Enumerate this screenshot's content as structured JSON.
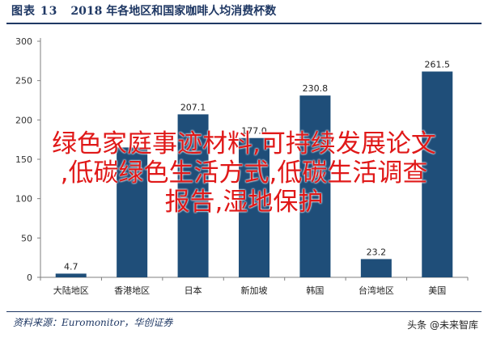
{
  "header": {
    "figure_label": "图表 13",
    "figure_title": "2018 年各地区和国家咖啡人均消费杯数"
  },
  "source_text": "资料来源：Euromonitor，华创证券",
  "watermark_logo": "头条 @未来智库",
  "overlay_lines": [
    "绿色家庭事迹材料,可持续发展论文",
    ",低碳绿色生活方式,低碳生活调查",
    "报告,湿地保护"
  ],
  "colors": {
    "bar": "#1f4e79",
    "title": "#1f3864",
    "overlay": "#e01818",
    "grid": "#d9d9d9"
  },
  "chart_data": {
    "type": "bar",
    "title": "2018 年各地区和国家咖啡人均消费杯数",
    "categories": [
      "大陆地区",
      "香港地区",
      "日本",
      "新加坡",
      "韩国",
      "台湾地区",
      "美国"
    ],
    "values": [
      4.7,
      null,
      207.1,
      177.0,
      null,
      23.2,
      261.5
    ],
    "estimated_values": [
      4.7,
      165,
      207.1,
      177.0,
      231,
      23.2,
      261.5
    ],
    "data_labels": [
      "4.7",
      "",
      "207.1",
      "177.0",
      "230.8",
      "23.2",
      "261.5"
    ],
    "y_ticks": [
      "300",
      "250",
      "200",
      "150",
      "100",
      "50",
      "0"
    ],
    "ylim": [
      0,
      300
    ],
    "grid": false,
    "legend": "none"
  }
}
